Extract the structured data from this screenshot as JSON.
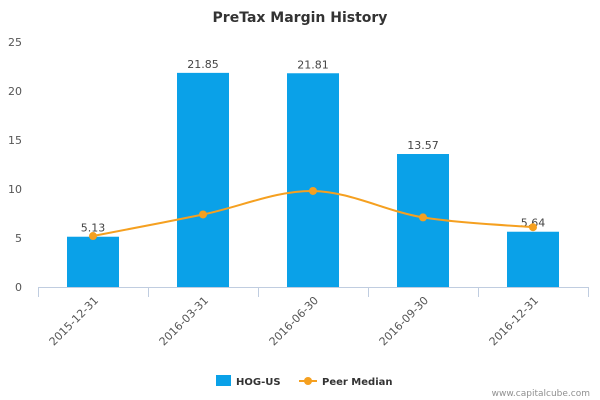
{
  "chart_data": {
    "type": "bar",
    "title": "PreTax Margin History",
    "categories": [
      "2015-12-31",
      "2016-03-31",
      "2016-06-30",
      "2016-09-30",
      "2016-12-31"
    ],
    "series": [
      {
        "name": "HOG-US",
        "kind": "bar",
        "color": "#0aa1e8",
        "values": [
          5.13,
          21.85,
          21.81,
          13.57,
          5.64
        ]
      },
      {
        "name": "Peer Median",
        "kind": "line",
        "color": "#f5a020",
        "values": [
          5.2,
          7.4,
          9.8,
          7.1,
          6.1
        ]
      }
    ],
    "ylim": [
      0,
      25
    ],
    "yticks": [
      0,
      5,
      10,
      15,
      20,
      25
    ],
    "grid": false,
    "legend": "bottom-center"
  },
  "credit": "www.capitalcube.com"
}
